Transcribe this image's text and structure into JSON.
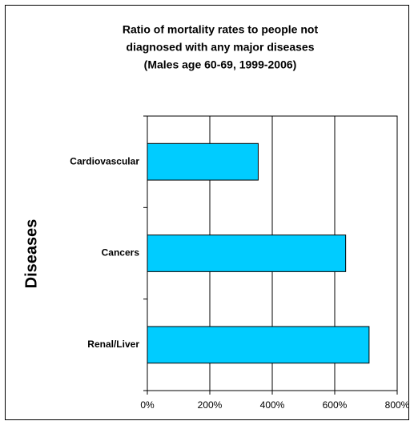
{
  "chart_data": {
    "type": "bar",
    "orientation": "horizontal",
    "title": [
      "Ratio of mortality rates to people not",
      "diagnosed with any major diseases",
      "(Males age 60-69, 1999-2006)"
    ],
    "y_label": "Diseases",
    "categories": [
      "Cardiovascular",
      "Cancers",
      "Renal/Liver"
    ],
    "values": [
      355,
      635,
      710
    ],
    "color": "#00ccff",
    "xlim": [
      0,
      800
    ],
    "xticks": [
      {
        "value": 0,
        "label": "0%"
      },
      {
        "value": 200,
        "label": "200%"
      },
      {
        "value": 400,
        "label": "400%"
      },
      {
        "value": 600,
        "label": "600%"
      },
      {
        "value": 800,
        "label": "800%"
      }
    ],
    "grid": true
  }
}
